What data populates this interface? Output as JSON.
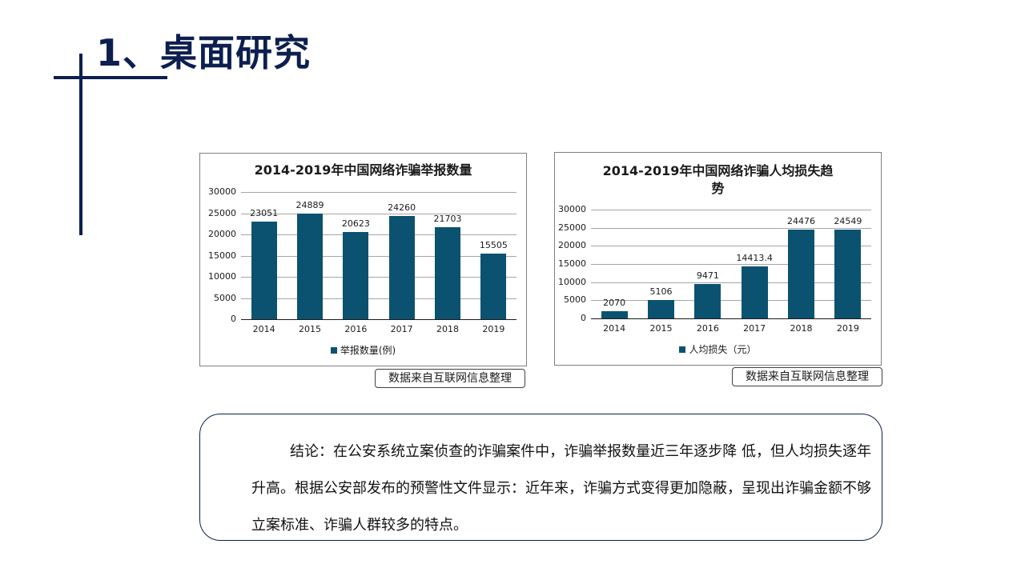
{
  "header": {
    "title": "1、桌面研究"
  },
  "charts": [
    {
      "title_line1": "2014-2019年中国网络诈骗举报数量",
      "title_line2": "",
      "legend": "举报数量(例)",
      "source": "数据来自互联网信息整理",
      "yticks": [
        "30000",
        "25000",
        "20000",
        "15000",
        "10000",
        "5000",
        "0"
      ],
      "categories": [
        "2014",
        "2015",
        "2016",
        "2017",
        "2018",
        "2019"
      ],
      "labels": [
        "23051",
        "24889",
        "20623",
        "24260",
        "21703",
        "15505"
      ]
    },
    {
      "title_line1": "2014-2019年中国网络诈骗人均损失趋",
      "title_line2": "势",
      "legend": "人均损失（元）",
      "source": "数据来自互联网信息整理",
      "yticks": [
        "30000",
        "25000",
        "20000",
        "15000",
        "10000",
        "5000",
        "0"
      ],
      "categories": [
        "2014",
        "2015",
        "2016",
        "2017",
        "2018",
        "2019"
      ],
      "labels": [
        "2070",
        "5106",
        "9471",
        "14413.4",
        "24476",
        "24549"
      ]
    }
  ],
  "conclusion": {
    "text": "结论：在公安系统立案侦查的诈骗案件中，诈骗举报数量近三年逐步降 低，但人均损失逐年升高。根据公安部发布的预警性文件显示：近年来，诈骗方式变得更加隐蔽，呈现出诈骗金额不够立案标准、诈骗人群较多的特点。"
  },
  "colors": {
    "bar": "#0b5270",
    "title": "#0c1f4f",
    "grid": "#a6a6a6"
  },
  "chart_data": [
    {
      "type": "bar",
      "title": "2014-2019年中国网络诈骗举报数量",
      "categories": [
        "2014",
        "2015",
        "2016",
        "2017",
        "2018",
        "2019"
      ],
      "series": [
        {
          "name": "举报数量(例)",
          "values": [
            23051,
            24889,
            20623,
            24260,
            21703,
            15505
          ]
        }
      ],
      "xlabel": "",
      "ylabel": "",
      "ylim": [
        0,
        30000
      ],
      "yticks": [
        0,
        5000,
        10000,
        15000,
        20000,
        25000,
        30000
      ],
      "grid": true,
      "legend_position": "bottom",
      "data_labels": true
    },
    {
      "type": "bar",
      "title": "2014-2019年中国网络诈骗人均损失趋势",
      "categories": [
        "2014",
        "2015",
        "2016",
        "2017",
        "2018",
        "2019"
      ],
      "series": [
        {
          "name": "人均损失（元）",
          "values": [
            2070,
            5106,
            9471,
            14413.4,
            24476,
            24549
          ]
        }
      ],
      "xlabel": "",
      "ylabel": "",
      "ylim": [
        0,
        30000
      ],
      "yticks": [
        0,
        5000,
        10000,
        15000,
        20000,
        25000,
        30000
      ],
      "grid": true,
      "legend_position": "bottom",
      "data_labels": true
    }
  ]
}
